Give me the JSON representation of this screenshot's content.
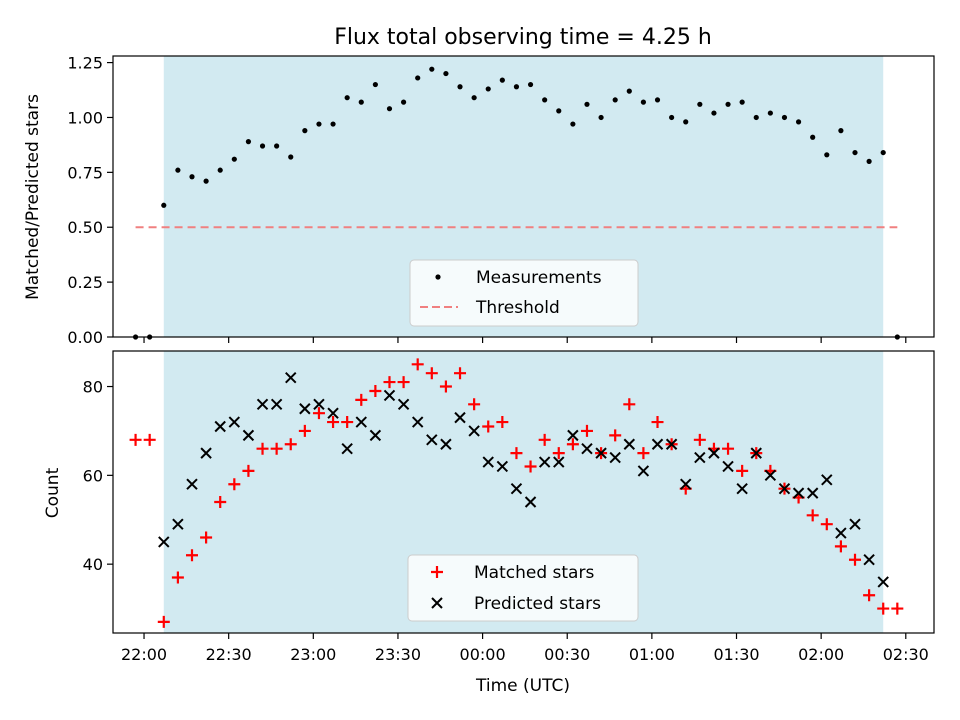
{
  "chart_data": [
    {
      "type": "scatter",
      "title": "Flux total observing time = 4.25 h",
      "xlabel": "",
      "ylabel": "Matched/Predicted stars",
      "x_unit": "time (UTC)",
      "xlim": [
        "21:49",
        "02:40"
      ],
      "ylim": [
        0,
        1.28
      ],
      "y_ticks": [
        "0.00",
        "0.25",
        "0.50",
        "0.75",
        "1.00",
        "1.25"
      ],
      "x_tick_labels_shown": false,
      "observing_window": {
        "start": "22:07",
        "end": "02:22",
        "color": "#add8e6"
      },
      "threshold": {
        "name": "Threshold",
        "value": 0.5,
        "x_range": [
          "21:57",
          "02:27"
        ],
        "style": "dashed",
        "color": "#f08080"
      },
      "legend": {
        "placement": "lower-center",
        "entries": [
          "Measurements",
          "Threshold"
        ]
      },
      "series": [
        {
          "name": "Measurements",
          "marker": "dot",
          "color": "#000000",
          "x": [
            "21:57",
            "22:02",
            "22:07",
            "22:12",
            "22:17",
            "22:22",
            "22:27",
            "22:32",
            "22:37",
            "22:42",
            "22:47",
            "22:52",
            "22:57",
            "23:02",
            "23:07",
            "23:12",
            "23:17",
            "23:22",
            "23:27",
            "23:32",
            "23:37",
            "23:42",
            "23:47",
            "23:52",
            "23:57",
            "00:02",
            "00:07",
            "00:12",
            "00:17",
            "00:22",
            "00:27",
            "00:32",
            "00:37",
            "00:42",
            "00:47",
            "00:52",
            "00:57",
            "01:02",
            "01:07",
            "01:12",
            "01:17",
            "01:22",
            "01:27",
            "01:32",
            "01:37",
            "01:42",
            "01:47",
            "01:52",
            "01:57",
            "02:02",
            "02:07",
            "02:12",
            "02:17",
            "02:22",
            "02:27"
          ],
          "values": [
            0.0,
            0.0,
            0.6,
            0.76,
            0.73,
            0.71,
            0.76,
            0.81,
            0.89,
            0.87,
            0.87,
            0.82,
            0.94,
            0.97,
            0.97,
            1.09,
            1.07,
            1.15,
            1.04,
            1.07,
            1.18,
            1.22,
            1.2,
            1.14,
            1.09,
            1.13,
            1.17,
            1.14,
            1.15,
            1.08,
            1.03,
            0.97,
            1.06,
            1.0,
            1.08,
            1.12,
            1.07,
            1.08,
            1.0,
            0.98,
            1.06,
            1.02,
            1.06,
            1.07,
            1.0,
            1.02,
            1.0,
            0.98,
            0.91,
            0.83,
            0.94,
            0.84,
            0.8,
            0.84,
            0.0
          ]
        }
      ]
    },
    {
      "type": "scatter",
      "title": "",
      "xlabel": "Time (UTC)",
      "ylabel": "Count",
      "xlim": [
        "21:49",
        "02:40"
      ],
      "ylim": [
        24.5,
        88
      ],
      "y_ticks": [
        "40",
        "60",
        "80"
      ],
      "x_ticks": [
        "22:00",
        "22:30",
        "23:00",
        "23:30",
        "00:00",
        "00:30",
        "01:00",
        "01:30",
        "02:00",
        "02:30"
      ],
      "observing_window": {
        "start": "22:07",
        "end": "02:22",
        "color": "#add8e6"
      },
      "legend": {
        "placement": "lower-center",
        "entries": [
          "Matched stars",
          "Predicted stars"
        ]
      },
      "series": [
        {
          "name": "Matched stars",
          "marker": "plus",
          "color": "#ff0000",
          "x": [
            "21:57",
            "22:02",
            "22:07",
            "22:12",
            "22:17",
            "22:22",
            "22:27",
            "22:32",
            "22:37",
            "22:42",
            "22:47",
            "22:52",
            "22:57",
            "23:02",
            "23:07",
            "23:12",
            "23:17",
            "23:22",
            "23:27",
            "23:32",
            "23:37",
            "23:42",
            "23:47",
            "23:52",
            "23:57",
            "00:02",
            "00:07",
            "00:12",
            "00:17",
            "00:22",
            "00:27",
            "00:32",
            "00:37",
            "00:42",
            "00:47",
            "00:52",
            "00:57",
            "01:02",
            "01:07",
            "01:12",
            "01:17",
            "01:22",
            "01:27",
            "01:32",
            "01:37",
            "01:42",
            "01:47",
            "01:52",
            "01:57",
            "02:02",
            "02:07",
            "02:12",
            "02:17",
            "02:22",
            "02:27"
          ],
          "values": [
            68,
            68,
            27,
            37,
            42,
            46,
            54,
            58,
            61,
            66,
            66,
            67,
            70,
            74,
            72,
            72,
            77,
            79,
            81,
            81,
            85,
            83,
            80,
            83,
            76,
            71,
            72,
            65,
            62,
            68,
            65,
            67,
            70,
            65,
            69,
            76,
            65,
            72,
            67,
            57,
            68,
            66,
            66,
            61,
            65,
            61,
            57,
            55,
            51,
            49,
            44,
            41,
            33,
            30,
            30
          ]
        },
        {
          "name": "Predicted stars",
          "marker": "x",
          "color": "#000000",
          "x": [
            "22:07",
            "22:12",
            "22:17",
            "22:22",
            "22:27",
            "22:32",
            "22:37",
            "22:42",
            "22:47",
            "22:52",
            "22:57",
            "23:02",
            "23:07",
            "23:12",
            "23:17",
            "23:22",
            "23:27",
            "23:32",
            "23:37",
            "23:42",
            "23:47",
            "23:52",
            "23:57",
            "00:02",
            "00:07",
            "00:12",
            "00:17",
            "00:22",
            "00:27",
            "00:32",
            "00:37",
            "00:42",
            "00:47",
            "00:52",
            "00:57",
            "01:02",
            "01:07",
            "01:12",
            "01:17",
            "01:22",
            "01:27",
            "01:32",
            "01:37",
            "01:42",
            "01:47",
            "01:52",
            "01:57",
            "02:02",
            "02:07",
            "02:12",
            "02:17",
            "02:22"
          ],
          "values": [
            45,
            49,
            58,
            65,
            71,
            72,
            69,
            76,
            76,
            82,
            75,
            76,
            74,
            66,
            72,
            69,
            78,
            76,
            72,
            68,
            67,
            73,
            70,
            63,
            62,
            57,
            54,
            63,
            63,
            69,
            66,
            65,
            64,
            67,
            61,
            67,
            67,
            58,
            64,
            65,
            62,
            57,
            65,
            60,
            57,
            56,
            56,
            59,
            47,
            49,
            41,
            36
          ]
        }
      ]
    }
  ]
}
